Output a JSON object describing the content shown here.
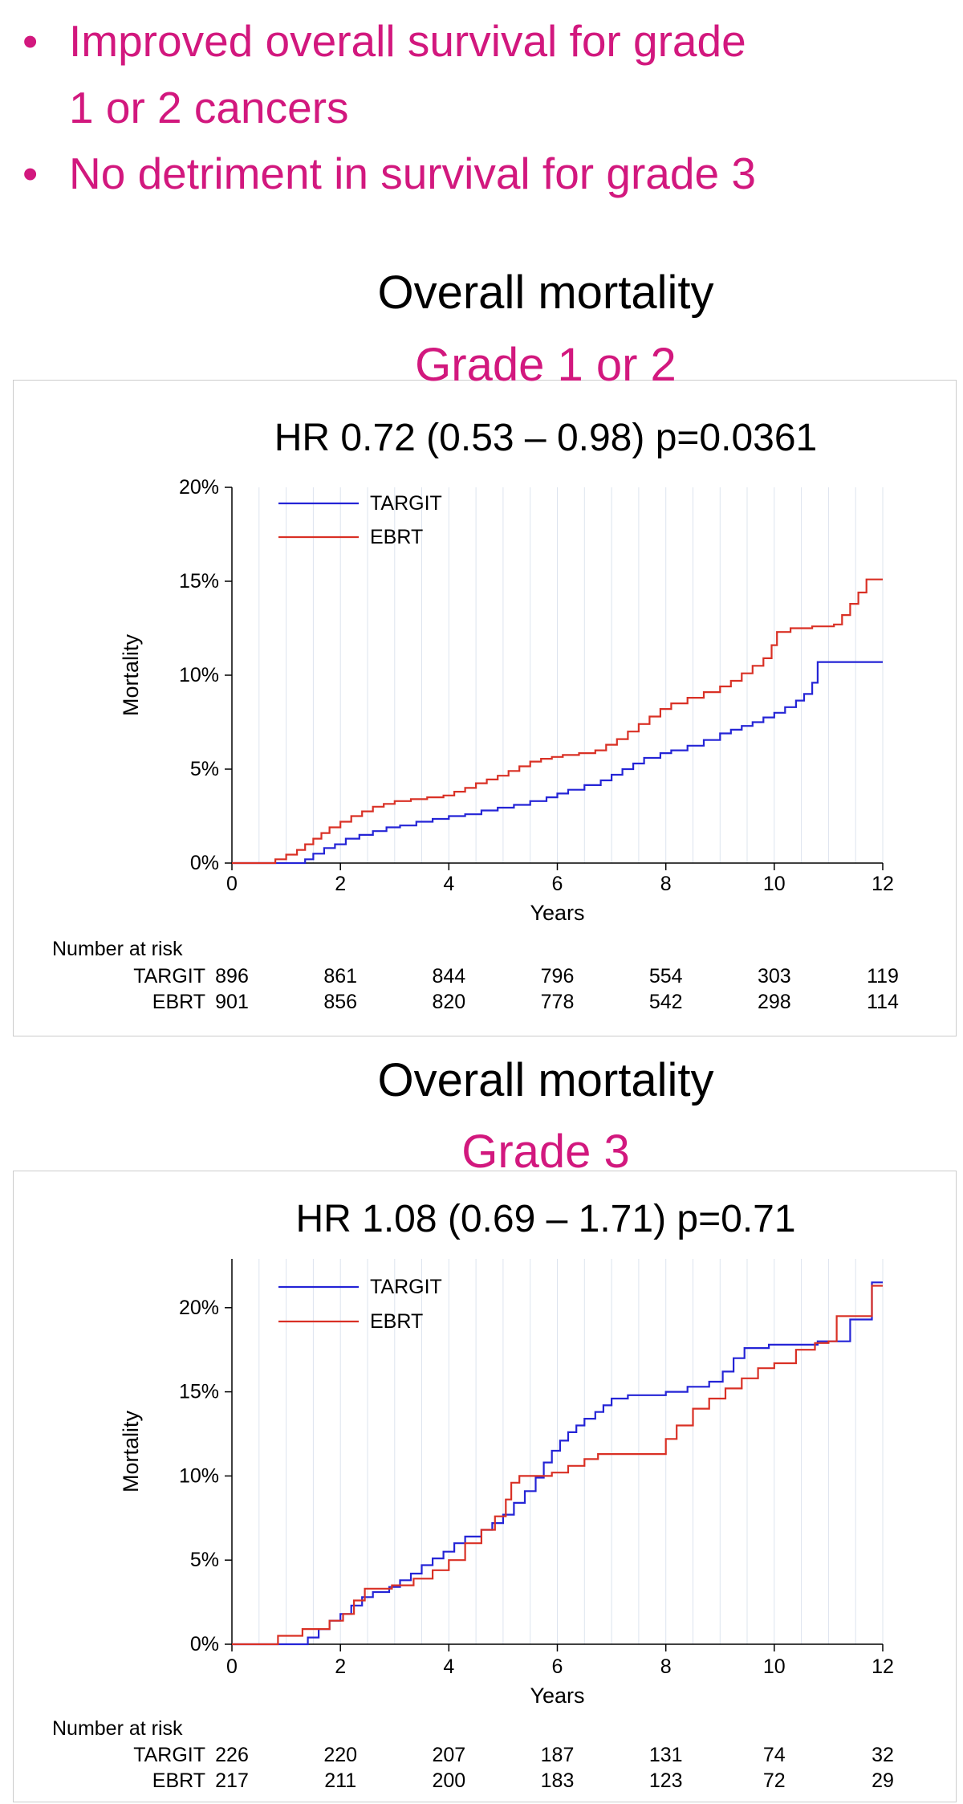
{
  "accent_color": "#d2187e",
  "bullets": {
    "marker": "•",
    "color": "#d2187e",
    "items": [
      {
        "lines": [
          "Improved overall survival for grade",
          "1 or 2 cancers"
        ]
      },
      {
        "lines": [
          "No detriment in survival for grade 3"
        ]
      }
    ]
  },
  "chart_data": [
    {
      "type": "line",
      "title": "Overall mortality",
      "subtitle": "Grade 1 or 2",
      "subtitle_color": "#d2187e",
      "annotation": "HR 0.72 (0.53 – 0.98) p=0.0361",
      "xlabel": "Years",
      "ylabel": "Mortality",
      "xlim": [
        0,
        12
      ],
      "ylim": [
        0,
        20
      ],
      "xticks": [
        0,
        2,
        4,
        6,
        8,
        10,
        12
      ],
      "yticks": [
        0,
        5,
        10,
        15,
        20
      ],
      "ytick_labels": [
        "0%",
        "5%",
        "10%",
        "15%",
        "20%"
      ],
      "grid": "vertical-minor-every-0.5yr",
      "legend_position": "top-left",
      "legend": [
        "TARGIT",
        "EBRT"
      ],
      "series": [
        {
          "name": "TARGIT",
          "color": "#2424d6",
          "step": true,
          "points": [
            [
              0,
              0
            ],
            [
              1.25,
              0
            ],
            [
              1.35,
              0.2
            ],
            [
              1.5,
              0.5
            ],
            [
              1.7,
              0.8
            ],
            [
              1.9,
              1.0
            ],
            [
              2.1,
              1.3
            ],
            [
              2.35,
              1.5
            ],
            [
              2.6,
              1.7
            ],
            [
              2.85,
              1.9
            ],
            [
              3.1,
              2.0
            ],
            [
              3.4,
              2.2
            ],
            [
              3.7,
              2.35
            ],
            [
              4.0,
              2.5
            ],
            [
              4.3,
              2.6
            ],
            [
              4.6,
              2.8
            ],
            [
              4.9,
              2.95
            ],
            [
              5.2,
              3.1
            ],
            [
              5.5,
              3.3
            ],
            [
              5.8,
              3.5
            ],
            [
              6.0,
              3.7
            ],
            [
              6.2,
              3.9
            ],
            [
              6.5,
              4.15
            ],
            [
              6.8,
              4.4
            ],
            [
              7.0,
              4.7
            ],
            [
              7.2,
              5.0
            ],
            [
              7.4,
              5.3
            ],
            [
              7.6,
              5.6
            ],
            [
              7.9,
              5.85
            ],
            [
              8.1,
              6.0
            ],
            [
              8.4,
              6.25
            ],
            [
              8.7,
              6.55
            ],
            [
              9.0,
              6.9
            ],
            [
              9.2,
              7.1
            ],
            [
              9.4,
              7.3
            ],
            [
              9.6,
              7.5
            ],
            [
              9.8,
              7.75
            ],
            [
              10.0,
              8.0
            ],
            [
              10.2,
              8.3
            ],
            [
              10.4,
              8.65
            ],
            [
              10.55,
              9.0
            ],
            [
              10.7,
              9.6
            ],
            [
              10.8,
              10.7
            ],
            [
              12,
              10.7
            ]
          ]
        },
        {
          "name": "EBRT",
          "color": "#d93025",
          "step": true,
          "points": [
            [
              0,
              0
            ],
            [
              0.7,
              0
            ],
            [
              0.8,
              0.2
            ],
            [
              1.0,
              0.45
            ],
            [
              1.2,
              0.7
            ],
            [
              1.35,
              1.0
            ],
            [
              1.5,
              1.3
            ],
            [
              1.65,
              1.6
            ],
            [
              1.8,
              1.9
            ],
            [
              2.0,
              2.2
            ],
            [
              2.2,
              2.5
            ],
            [
              2.4,
              2.75
            ],
            [
              2.6,
              3.0
            ],
            [
              2.8,
              3.15
            ],
            [
              3.0,
              3.3
            ],
            [
              3.3,
              3.4
            ],
            [
              3.6,
              3.5
            ],
            [
              3.9,
              3.6
            ],
            [
              4.1,
              3.8
            ],
            [
              4.3,
              4.0
            ],
            [
              4.5,
              4.25
            ],
            [
              4.7,
              4.45
            ],
            [
              4.9,
              4.65
            ],
            [
              5.1,
              4.9
            ],
            [
              5.3,
              5.15
            ],
            [
              5.5,
              5.4
            ],
            [
              5.7,
              5.55
            ],
            [
              5.9,
              5.65
            ],
            [
              6.1,
              5.75
            ],
            [
              6.4,
              5.85
            ],
            [
              6.7,
              6.0
            ],
            [
              6.9,
              6.3
            ],
            [
              7.1,
              6.6
            ],
            [
              7.3,
              7.0
            ],
            [
              7.5,
              7.4
            ],
            [
              7.7,
              7.8
            ],
            [
              7.9,
              8.2
            ],
            [
              8.1,
              8.5
            ],
            [
              8.4,
              8.8
            ],
            [
              8.7,
              9.1
            ],
            [
              9.0,
              9.4
            ],
            [
              9.2,
              9.7
            ],
            [
              9.4,
              10.1
            ],
            [
              9.6,
              10.5
            ],
            [
              9.8,
              10.9
            ],
            [
              9.95,
              11.6
            ],
            [
              10.05,
              12.3
            ],
            [
              10.3,
              12.5
            ],
            [
              10.7,
              12.6
            ],
            [
              11.1,
              12.7
            ],
            [
              11.25,
              13.2
            ],
            [
              11.4,
              13.8
            ],
            [
              11.55,
              14.4
            ],
            [
              11.7,
              15.1
            ],
            [
              12,
              15.1
            ]
          ]
        }
      ],
      "number_at_risk": {
        "label": "Number at risk",
        "times": [
          0,
          2,
          4,
          6,
          8,
          10,
          12
        ],
        "rows": [
          {
            "name": "TARGIT",
            "values": [
              896,
              861,
              844,
              796,
              554,
              303,
              119
            ]
          },
          {
            "name": "EBRT",
            "values": [
              901,
              856,
              820,
              778,
              542,
              298,
              114
            ]
          }
        ]
      }
    },
    {
      "type": "line",
      "title": "Overall mortality",
      "subtitle": "Grade 3",
      "subtitle_color": "#d2187e",
      "annotation": "HR 1.08 (0.69 – 1.71) p=0.71",
      "xlabel": "Years",
      "ylabel": "Mortality",
      "xlim": [
        0,
        12
      ],
      "ylim": [
        0,
        22.9
      ],
      "xticks": [
        0,
        2,
        4,
        6,
        8,
        10,
        12
      ],
      "yticks": [
        0,
        5,
        10,
        15,
        20
      ],
      "ytick_labels": [
        "0%",
        "5%",
        "10%",
        "15%",
        "20%"
      ],
      "grid": "vertical-minor-every-0.5yr",
      "legend_position": "top-left",
      "legend": [
        "TARGIT",
        "EBRT"
      ],
      "series": [
        {
          "name": "TARGIT",
          "color": "#2424d6",
          "step": true,
          "points": [
            [
              0,
              0
            ],
            [
              1.3,
              0
            ],
            [
              1.4,
              0.4
            ],
            [
              1.6,
              0.9
            ],
            [
              1.8,
              1.4
            ],
            [
              2.0,
              1.8
            ],
            [
              2.2,
              2.3
            ],
            [
              2.4,
              2.8
            ],
            [
              2.6,
              3.1
            ],
            [
              2.9,
              3.4
            ],
            [
              3.1,
              3.8
            ],
            [
              3.3,
              4.2
            ],
            [
              3.5,
              4.7
            ],
            [
              3.7,
              5.1
            ],
            [
              3.9,
              5.5
            ],
            [
              4.1,
              6.0
            ],
            [
              4.3,
              6.4
            ],
            [
              4.6,
              6.8
            ],
            [
              4.8,
              7.2
            ],
            [
              5.0,
              7.7
            ],
            [
              5.2,
              8.4
            ],
            [
              5.4,
              9.1
            ],
            [
              5.6,
              9.9
            ],
            [
              5.75,
              10.8
            ],
            [
              5.9,
              11.5
            ],
            [
              6.05,
              12.1
            ],
            [
              6.2,
              12.6
            ],
            [
              6.35,
              13.0
            ],
            [
              6.5,
              13.4
            ],
            [
              6.7,
              13.8
            ],
            [
              6.85,
              14.2
            ],
            [
              7.0,
              14.6
            ],
            [
              7.3,
              14.8
            ],
            [
              8.0,
              15.0
            ],
            [
              8.4,
              15.3
            ],
            [
              8.8,
              15.6
            ],
            [
              9.05,
              16.2
            ],
            [
              9.25,
              17.0
            ],
            [
              9.45,
              17.6
            ],
            [
              9.9,
              17.8
            ],
            [
              10.8,
              18.0
            ],
            [
              11.35,
              18.0
            ],
            [
              11.4,
              19.3
            ],
            [
              11.75,
              19.3
            ],
            [
              11.8,
              21.5
            ],
            [
              12,
              21.5
            ]
          ]
        },
        {
          "name": "EBRT",
          "color": "#d93025",
          "step": true,
          "points": [
            [
              0,
              0
            ],
            [
              0.75,
              0
            ],
            [
              0.85,
              0.5
            ],
            [
              1.3,
              0.9
            ],
            [
              1.8,
              1.4
            ],
            [
              2.05,
              1.8
            ],
            [
              2.25,
              2.6
            ],
            [
              2.45,
              3.3
            ],
            [
              2.95,
              3.5
            ],
            [
              3.35,
              3.9
            ],
            [
              3.7,
              4.4
            ],
            [
              4.0,
              5.0
            ],
            [
              4.3,
              6.0
            ],
            [
              4.6,
              6.8
            ],
            [
              4.85,
              7.6
            ],
            [
              5.05,
              8.6
            ],
            [
              5.15,
              9.6
            ],
            [
              5.3,
              10.0
            ],
            [
              5.9,
              10.2
            ],
            [
              6.2,
              10.6
            ],
            [
              6.5,
              11.0
            ],
            [
              6.75,
              11.3
            ],
            [
              7.8,
              11.3
            ],
            [
              8.0,
              12.2
            ],
            [
              8.2,
              13.0
            ],
            [
              8.5,
              14.0
            ],
            [
              8.8,
              14.6
            ],
            [
              9.1,
              15.2
            ],
            [
              9.4,
              15.8
            ],
            [
              9.7,
              16.4
            ],
            [
              10.0,
              16.7
            ],
            [
              10.4,
              17.5
            ],
            [
              10.75,
              17.9
            ],
            [
              11.0,
              18.0
            ],
            [
              11.15,
              19.5
            ],
            [
              11.75,
              19.5
            ],
            [
              11.8,
              21.3
            ],
            [
              12,
              21.3
            ]
          ]
        }
      ],
      "number_at_risk": {
        "label": "Number at risk",
        "times": [
          0,
          2,
          4,
          6,
          8,
          10,
          12
        ],
        "rows": [
          {
            "name": "TARGIT",
            "values": [
              226,
              220,
              207,
              187,
              131,
              74,
              32
            ]
          },
          {
            "name": "EBRT",
            "values": [
              217,
              211,
              200,
              183,
              123,
              72,
              29
            ]
          }
        ]
      }
    }
  ]
}
